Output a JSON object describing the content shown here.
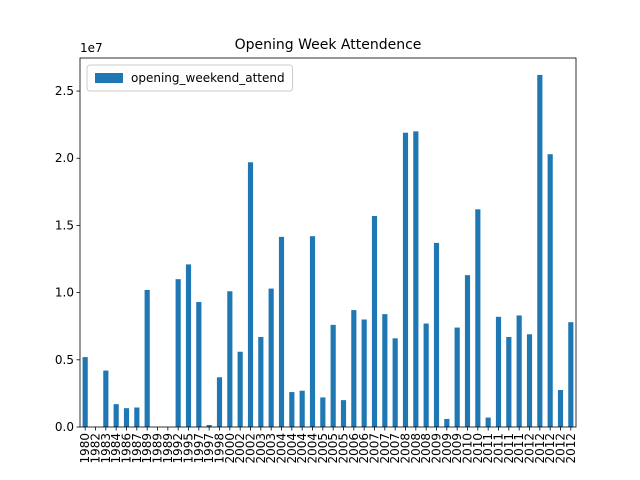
{
  "chart_data": {
    "type": "bar",
    "title": "Opening Week Attendence",
    "y_offset_label": "1e7",
    "categories": [
      "1980",
      "1982",
      "1983",
      "1984",
      "1986",
      "1987",
      "1989",
      "1989",
      "1989",
      "1992",
      "1995",
      "1997",
      "1997",
      "1998",
      "2000",
      "2002",
      "2002",
      "2003",
      "2003",
      "2004",
      "2004",
      "2004",
      "2004",
      "2005",
      "2005",
      "2005",
      "2006",
      "2006",
      "2007",
      "2007",
      "2007",
      "2008",
      "2008",
      "2008",
      "2009",
      "2009",
      "2009",
      "2010",
      "2010",
      "2011",
      "2011",
      "2011",
      "2011",
      "2012",
      "2012",
      "2012",
      "2012",
      "2012"
    ],
    "series": [
      {
        "name": "opening_weekend_attend",
        "color": "#1f77b4",
        "values": [
          5200000,
          0,
          4200000,
          1700000,
          1400000,
          1450000,
          10200000,
          0,
          0,
          11000000,
          12100000,
          9300000,
          150000,
          3700000,
          10100000,
          5600000,
          19700000,
          6700000,
          10300000,
          14150000,
          2600000,
          2700000,
          14200000,
          2200000,
          7600000,
          2000000,
          8700000,
          8000000,
          15700000,
          8400000,
          6600000,
          21900000,
          22000000,
          7700000,
          13700000,
          600000,
          7400000,
          11300000,
          16200000,
          700000,
          8200000,
          6700000,
          8300000,
          6900000,
          26200000,
          20300000,
          2750000,
          7800000
        ]
      }
    ],
    "ylim": [
      0,
      27460000
    ],
    "yticks": [
      {
        "value": 0,
        "label": "0.0"
      },
      {
        "value": 5000000,
        "label": "0.5"
      },
      {
        "value": 10000000,
        "label": "1.0"
      },
      {
        "value": 15000000,
        "label": "1.5"
      },
      {
        "value": 20000000,
        "label": "2.0"
      },
      {
        "value": 25000000,
        "label": "2.5"
      }
    ],
    "legend": "upper left",
    "grid": false
  }
}
